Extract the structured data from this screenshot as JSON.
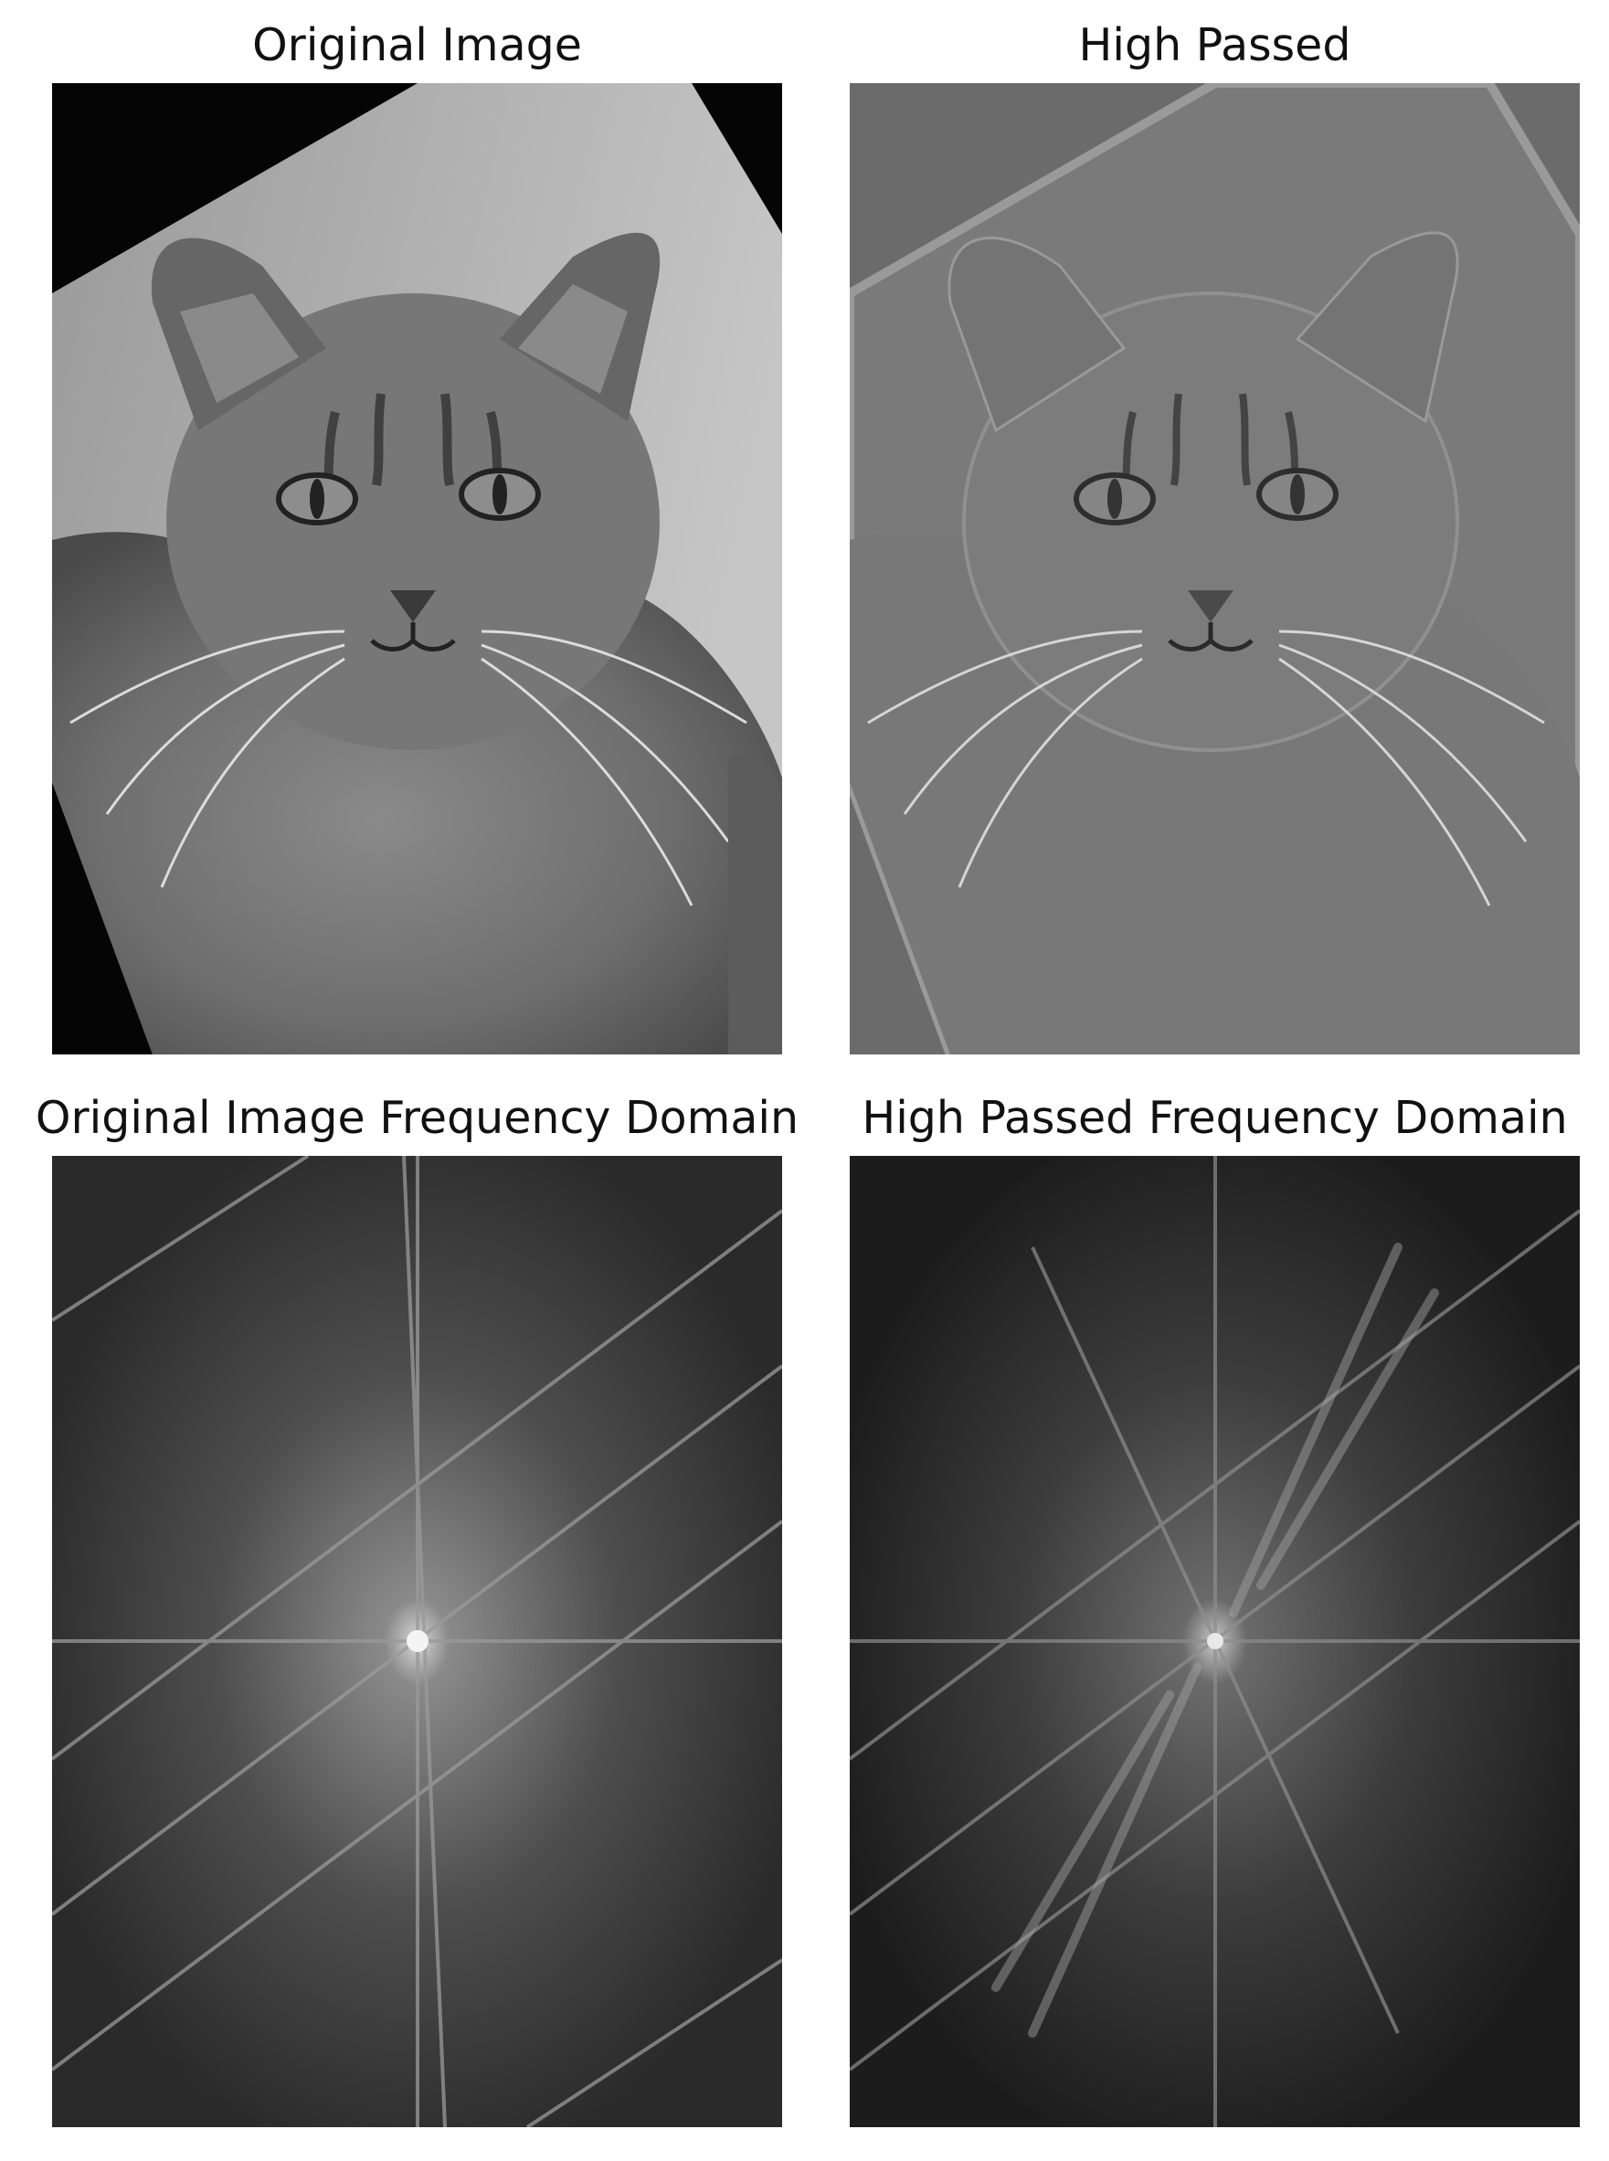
{
  "figure": {
    "panels": [
      {
        "id": "original",
        "title": "Original Image",
        "kind": "spatial",
        "depicts": "cat-photo-grayscale"
      },
      {
        "id": "high-passed",
        "title": "High Passed",
        "kind": "spatial",
        "depicts": "cat-photo-high-pass-filtered"
      },
      {
        "id": "original-freq",
        "title": "Original Image Frequency Domain",
        "kind": "frequency",
        "depicts": "fft-magnitude-spectrum"
      },
      {
        "id": "high-passed-freq",
        "title": "High Passed Frequency Domain",
        "kind": "frequency",
        "depicts": "fft-magnitude-spectrum"
      }
    ],
    "colors": {
      "background": "#ffffff",
      "title_text": "#111111"
    }
  }
}
